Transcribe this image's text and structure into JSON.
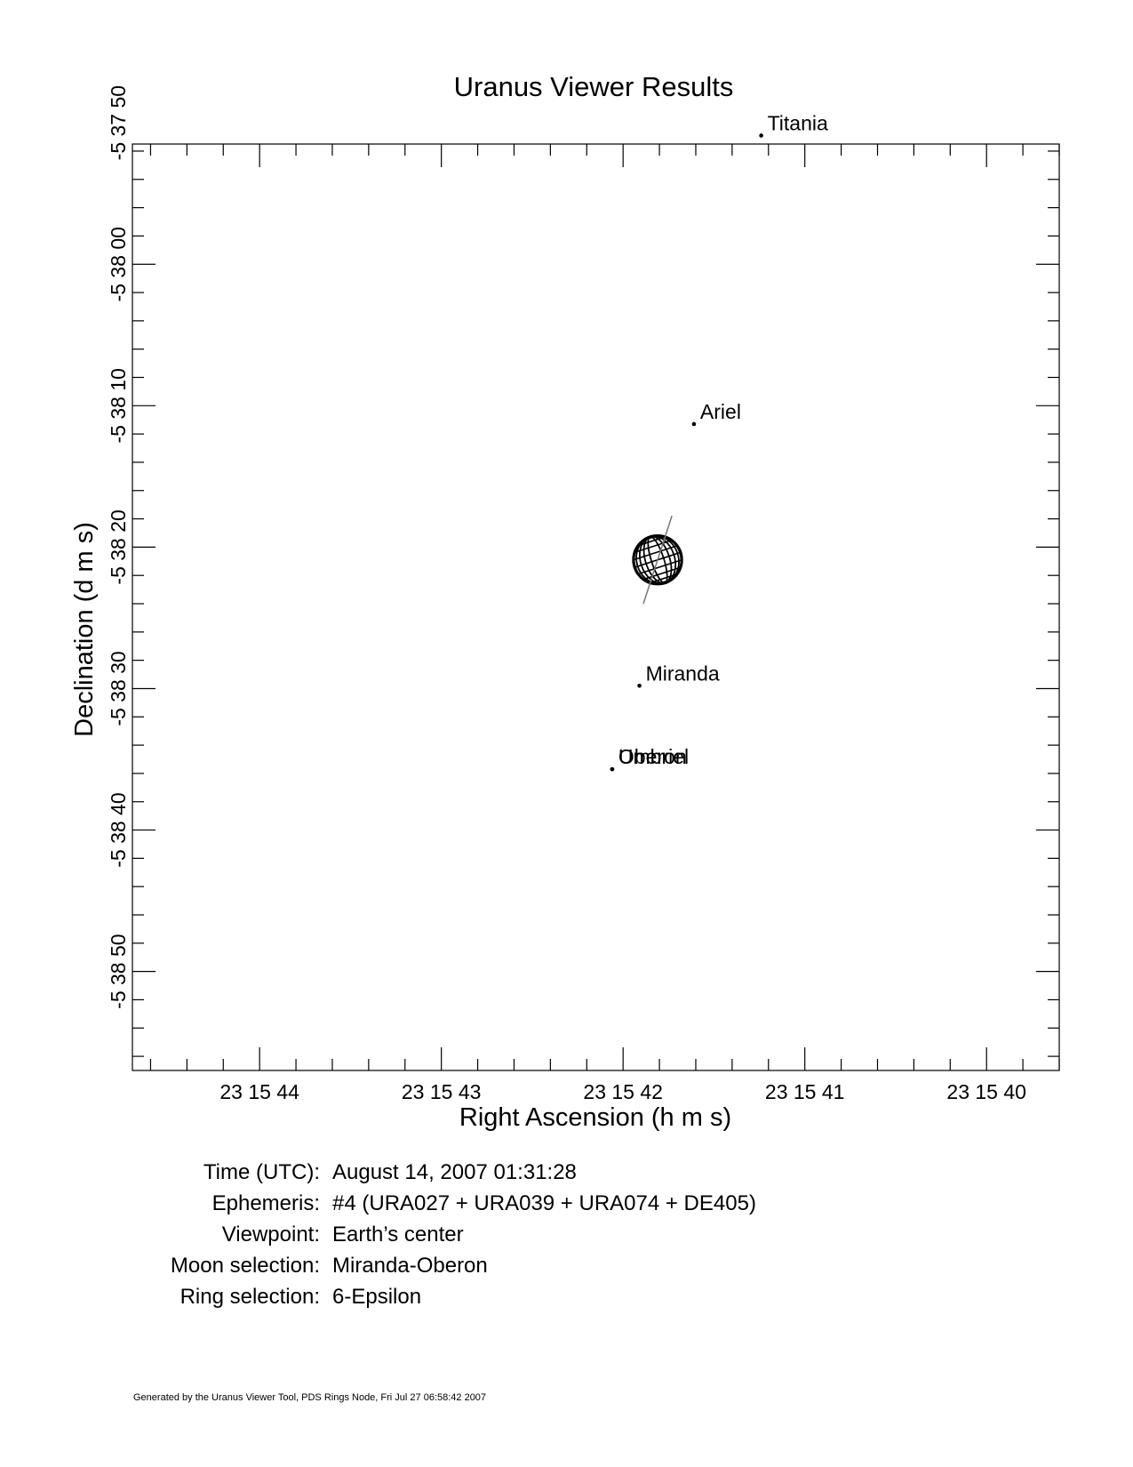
{
  "chart_data": {
    "type": "scatter",
    "title": "Uranus Viewer Results",
    "xlabel": "Right Ascension (h m s)",
    "ylabel": "Declination (d m s)",
    "x_unit": "seconds of RA past 23h 15m",
    "y_unit": "arcseconds south of -5d 38m 00s",
    "xlim": [
      44.7,
      39.6
    ],
    "ylim": [
      -8.5,
      57.0
    ],
    "x_ticks": [
      {
        "value": 44,
        "label": "23 15 44"
      },
      {
        "value": 43,
        "label": "23 15 43"
      },
      {
        "value": 42,
        "label": "23 15 42"
      },
      {
        "value": 41,
        "label": "23 15 41"
      },
      {
        "value": 40,
        "label": "23 15 40"
      }
    ],
    "y_ticks": [
      {
        "value": -10,
        "label": "-5 37 50"
      },
      {
        "value": 0,
        "label": "-5 38 00"
      },
      {
        "value": 10,
        "label": "-5 38 10"
      },
      {
        "value": 20,
        "label": "-5 38 20"
      },
      {
        "value": 30,
        "label": "-5 38 30"
      },
      {
        "value": 40,
        "label": "-5 38 40"
      },
      {
        "value": 50,
        "label": "-5 38 50"
      }
    ],
    "planet": {
      "name": "Uranus",
      "x": 41.81,
      "y": 20.9,
      "radius_arcsec": 1.8,
      "ring_tilt_deg": 72
    },
    "moons": [
      {
        "name": "Titania",
        "x": 41.24,
        "y": -9.1
      },
      {
        "name": "Ariel",
        "x": 41.61,
        "y": 11.3
      },
      {
        "name": "Miranda",
        "x": 41.91,
        "y": 29.8
      },
      {
        "name": "Umbriel",
        "x": 42.06,
        "y": 35.7
      },
      {
        "name": "Oberon",
        "x": 42.06,
        "y": 35.7
      }
    ],
    "grid": false,
    "legend": "none"
  },
  "info": [
    {
      "label": "Time (UTC):",
      "value": "August 14, 2007 01:31:28"
    },
    {
      "label": "Ephemeris:",
      "value": "#4 (URA027 + URA039 + URA074 + DE405)"
    },
    {
      "label": "Viewpoint:",
      "value": "Earth’s center"
    },
    {
      "label": "Moon selection:",
      "value": "Miranda-Oberon"
    },
    {
      "label": "Ring selection:",
      "value": "6-Epsilon"
    }
  ],
  "footer": "Generated by the Uranus Viewer Tool, PDS Rings Node, Fri Jul 27 06:58:42 2007"
}
